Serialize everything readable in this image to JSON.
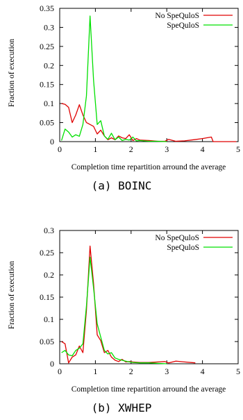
{
  "chart_data": [
    {
      "type": "line",
      "caption": "(a) BOINC",
      "xlabel": "Completion time repartition arround the average",
      "ylabel": "Fraction of execution",
      "xlim": [
        0,
        5
      ],
      "ylim": [
        0,
        0.35
      ],
      "xticks": [
        0,
        1,
        2,
        3,
        4,
        5
      ],
      "yticks": [
        0,
        0.05,
        0.1,
        0.15,
        0.2,
        0.25,
        0.3,
        0.35
      ],
      "legend_position": "top-right",
      "series": [
        {
          "name": "No SpeQuloS",
          "color": "#e00000",
          "x": [
            0.05,
            0.15,
            0.25,
            0.35,
            0.45,
            0.55,
            0.65,
            0.75,
            0.85,
            0.95,
            1.05,
            1.15,
            1.25,
            1.35,
            1.45,
            1.55,
            1.65,
            1.75,
            1.85,
            1.95,
            2.05,
            2.15,
            2.25,
            2.5,
            2.75,
            2.95,
            3.05,
            3.25,
            3.5,
            3.75,
            4.0,
            4.25,
            4.3,
            4.5,
            4.75,
            4.95
          ],
          "y": [
            0.1,
            0.098,
            0.09,
            0.05,
            0.07,
            0.097,
            0.07,
            0.05,
            0.045,
            0.04,
            0.02,
            0.03,
            0.015,
            0.005,
            0.01,
            0.005,
            0.015,
            0.01,
            0.008,
            0.018,
            0.003,
            0.008,
            0.004,
            0.003,
            0.001,
            0.001,
            0.006,
            0.001,
            0.002,
            0.005,
            0.008,
            0.012,
            0.0,
            0.0,
            0.0,
            0.0
          ]
        },
        {
          "name": "SpeQuloS",
          "color": "#00e000",
          "x": [
            0.05,
            0.15,
            0.25,
            0.35,
            0.45,
            0.55,
            0.65,
            0.75,
            0.85,
            0.95,
            1.05,
            1.15,
            1.25,
            1.35,
            1.45,
            1.55,
            1.65,
            1.75,
            1.85,
            1.95,
            2.05,
            2.15,
            2.25,
            2.35,
            2.5,
            2.75,
            3.0
          ],
          "y": [
            0.003,
            0.033,
            0.025,
            0.012,
            0.018,
            0.014,
            0.045,
            0.12,
            0.33,
            0.16,
            0.045,
            0.055,
            0.015,
            0.006,
            0.022,
            0.005,
            0.012,
            0.003,
            0.006,
            0.004,
            0.012,
            0.002,
            0.003,
            0.002,
            0.001,
            0.001,
            0.0
          ]
        }
      ]
    },
    {
      "type": "line",
      "caption": "(b) XWHEP",
      "xlabel": "Completion time repartition arround the average",
      "ylabel": "Fraction of execution",
      "xlim": [
        0,
        5
      ],
      "ylim": [
        0,
        0.3
      ],
      "xticks": [
        0,
        1,
        2,
        3,
        4,
        5
      ],
      "yticks": [
        0,
        0.05,
        0.1,
        0.15,
        0.2,
        0.25,
        0.3
      ],
      "legend_position": "top-right",
      "series": [
        {
          "name": "No SpeQuloS",
          "color": "#e00000",
          "x": [
            0.05,
            0.15,
            0.25,
            0.35,
            0.45,
            0.55,
            0.65,
            0.75,
            0.85,
            0.95,
            1.05,
            1.15,
            1.25,
            1.35,
            1.45,
            1.55,
            1.65,
            1.75,
            1.85,
            1.95,
            2.05,
            2.25,
            2.5,
            2.75,
            2.95,
            3.05,
            3.25,
            3.5,
            3.8
          ],
          "y": [
            0.05,
            0.045,
            0.002,
            0.015,
            0.02,
            0.04,
            0.025,
            0.12,
            0.265,
            0.18,
            0.065,
            0.052,
            0.025,
            0.03,
            0.015,
            0.008,
            0.005,
            0.01,
            0.004,
            0.005,
            0.004,
            0.003,
            0.003,
            0.004,
            0.005,
            0.002,
            0.006,
            0.004,
            0.002
          ]
        },
        {
          "name": "SpeQuloS",
          "color": "#00e000",
          "x": [
            0.05,
            0.15,
            0.25,
            0.35,
            0.45,
            0.55,
            0.65,
            0.75,
            0.85,
            0.95,
            1.05,
            1.15,
            1.25,
            1.35,
            1.45,
            1.55,
            1.65,
            1.75,
            1.85,
            1.95,
            2.05,
            2.25,
            2.5,
            2.75,
            3.0
          ],
          "y": [
            0.025,
            0.03,
            0.02,
            0.018,
            0.03,
            0.035,
            0.045,
            0.13,
            0.24,
            0.17,
            0.09,
            0.06,
            0.03,
            0.022,
            0.025,
            0.013,
            0.01,
            0.008,
            0.006,
            0.004,
            0.003,
            0.002,
            0.002,
            0.001,
            0.0
          ]
        }
      ]
    }
  ]
}
